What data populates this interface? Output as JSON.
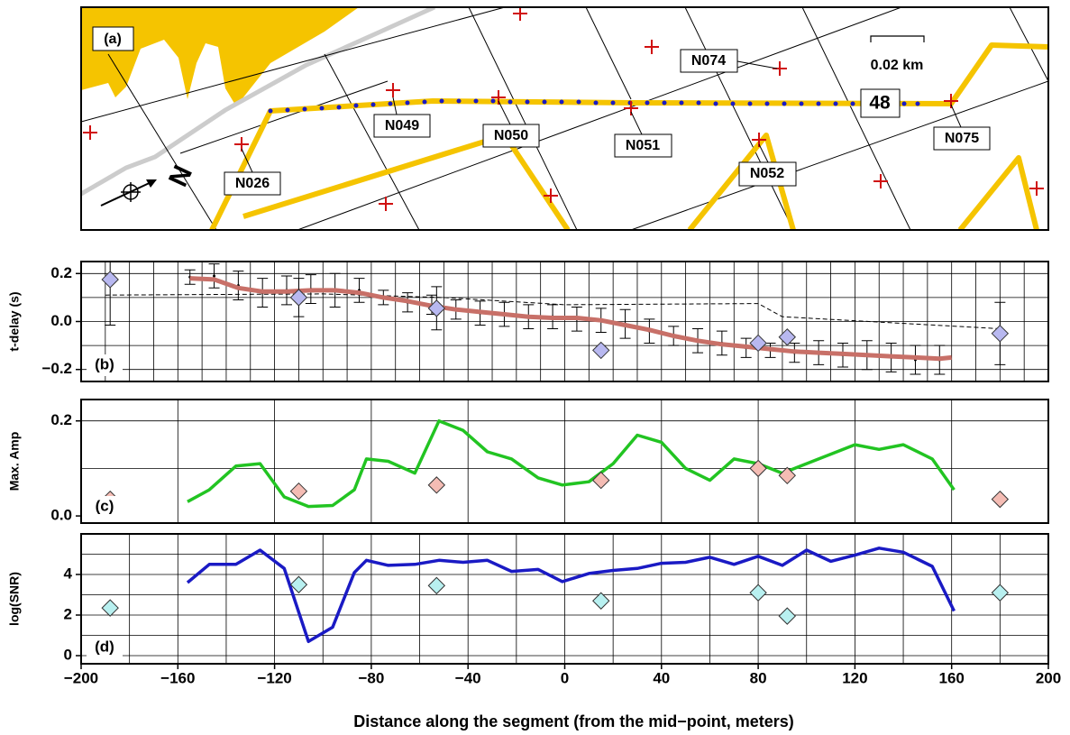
{
  "map": {
    "panel_label": "(a)",
    "stations": [
      "N074",
      "N049",
      "N050",
      "N051",
      "N052",
      "N075",
      "N026"
    ],
    "segment_id": "48",
    "scale": "0.02 km",
    "north": "N"
  },
  "chart_data": [
    {
      "type": "profile",
      "panel_label": "(b)",
      "ylabel": "t-delay (s)",
      "xlim": [
        -200,
        200
      ],
      "ylim": [
        -0.25,
        0.25
      ],
      "yticks": [
        {
          "value": -0.2,
          "label": "−0.2"
        },
        {
          "value": 0,
          "label": "0.0"
        },
        0.2
      ],
      "xgrid": [
        -190,
        -180,
        -170,
        -160,
        -150,
        -140,
        -130,
        -120,
        -110,
        -100,
        -90,
        -80,
        -70,
        -60,
        -50,
        -40,
        -30,
        -20,
        -10,
        0,
        10,
        20,
        30,
        40,
        50,
        60,
        70,
        80,
        90,
        100,
        110,
        120,
        130,
        140,
        150,
        160,
        170,
        180,
        190
      ],
      "ygrid": [
        -0.2,
        -0.1,
        0,
        0.1,
        0.2
      ],
      "series": [
        {
          "style": "dashed",
          "color": "#000000",
          "x": [
            -190,
            -100,
            -50,
            0,
            80,
            90,
            180
          ],
          "values": [
            0.11,
            0.115,
            0.1,
            0.07,
            0.075,
            0.02,
            -0.03
          ]
        },
        {
          "style": "errorbar",
          "color": "#000000",
          "x": [
            -155,
            -145,
            -135,
            -125,
            -115,
            -105,
            -95,
            -85,
            -75,
            -65,
            -55,
            -45,
            -35,
            -25,
            -15,
            -5,
            5,
            15,
            25,
            35,
            45,
            55,
            65,
            75,
            85,
            95,
            105,
            115,
            125,
            135,
            145,
            155
          ],
          "values": [
            0.185,
            0.19,
            0.15,
            0.12,
            0.13,
            0.135,
            0.13,
            0.13,
            0.1,
            0.08,
            0.07,
            0.05,
            0.035,
            0.03,
            0.02,
            0.02,
            0.01,
            0.005,
            -0.01,
            -0.04,
            -0.06,
            -0.08,
            -0.09,
            -0.11,
            -0.12,
            -0.13,
            -0.13,
            -0.14,
            -0.14,
            -0.15,
            -0.16,
            -0.16
          ],
          "errors": [
            0.03,
            0.05,
            0.06,
            0.06,
            0.06,
            0.06,
            0.07,
            0.05,
            0.03,
            0.04,
            0.04,
            0.04,
            0.05,
            0.05,
            0.05,
            0.05,
            0.05,
            0.05,
            0.06,
            0.05,
            0.04,
            0.05,
            0.05,
            0.04,
            0.03,
            0.04,
            0.05,
            0.05,
            0.06,
            0.06,
            0.06,
            0.06
          ]
        },
        {
          "style": "line",
          "color": "#c87068",
          "width": 5,
          "x": [
            -155,
            -145,
            -135,
            -125,
            -115,
            -105,
            -95,
            -85,
            -75,
            -65,
            -55,
            -45,
            -35,
            -25,
            -15,
            -5,
            5,
            15,
            25,
            35,
            45,
            55,
            65,
            75,
            85,
            95,
            105,
            115,
            125,
            135,
            145,
            155,
            160
          ],
          "values": [
            0.18,
            0.175,
            0.14,
            0.125,
            0.125,
            0.13,
            0.13,
            0.12,
            0.1,
            0.085,
            0.065,
            0.05,
            0.04,
            0.03,
            0.02,
            0.015,
            0.015,
            0.005,
            -0.015,
            -0.035,
            -0.06,
            -0.08,
            -0.095,
            -0.105,
            -0.115,
            -0.125,
            -0.13,
            -0.135,
            -0.14,
            -0.145,
            -0.15,
            -0.155,
            -0.15
          ]
        },
        {
          "style": "diamond",
          "color": "#b8b8f0",
          "x": [
            -188,
            -110,
            -53,
            15,
            80,
            92,
            180
          ],
          "values": [
            0.175,
            0.1,
            0.055,
            -0.12,
            -0.09,
            -0.065,
            -0.05
          ],
          "errors": [
            0.19,
            0.08,
            0.09,
            null,
            null,
            null,
            0.13
          ]
        }
      ]
    },
    {
      "type": "profile",
      "panel_label": "(c)",
      "ylabel": "Max. Amp",
      "xlim": [
        -200,
        200
      ],
      "ylim": [
        -0.015,
        0.245
      ],
      "yticks": [
        {
          "value": 0,
          "label": "0.0"
        },
        0.2
      ],
      "xgrid": [
        -160,
        -120,
        -80,
        -40,
        0,
        40,
        80,
        120,
        160
      ],
      "ygrid": [
        0.1,
        0.2
      ],
      "series": [
        {
          "style": "line",
          "color": "#22c422",
          "width": 3.5,
          "x": [
            -156,
            -147,
            -136,
            -126,
            -116,
            -106,
            -96,
            -87,
            -82,
            -73,
            -62,
            -52,
            -42,
            -32,
            -22,
            -11,
            -1,
            10,
            20,
            30,
            40,
            50,
            60,
            70,
            80,
            90,
            100,
            110,
            120,
            130,
            140,
            152,
            161
          ],
          "values": [
            0.03,
            0.055,
            0.105,
            0.11,
            0.04,
            0.02,
            0.022,
            0.055,
            0.12,
            0.115,
            0.09,
            0.2,
            0.18,
            0.135,
            0.12,
            0.08,
            0.065,
            0.072,
            0.11,
            0.17,
            0.155,
            0.1,
            0.075,
            0.12,
            0.11,
            0.09,
            0.11,
            0.13,
            0.15,
            0.14,
            0.15,
            0.12,
            0.055
          ]
        },
        {
          "style": "diamond",
          "color": "#f4bcb4",
          "x": [
            -188,
            -110,
            -53,
            15,
            80,
            92,
            180
          ],
          "values": [
            0.035,
            0.052,
            0.065,
            0.075,
            0.1,
            0.085,
            0.035
          ]
        }
      ]
    },
    {
      "type": "profile",
      "panel_label": "(d)",
      "ylabel": "log(SNR)",
      "xlabel": "Distance along the segment (from the mid−point, meters)",
      "xlim": [
        -200,
        200
      ],
      "ylim": [
        -0.4,
        6
      ],
      "xticks": [
        {
          "value": -200,
          "label": "−200"
        },
        {
          "value": -160,
          "label": "−160"
        },
        {
          "value": -120,
          "label": "−120"
        },
        {
          "value": -80,
          "label": "−80"
        },
        {
          "value": -40,
          "label": "−40"
        },
        0,
        40,
        80,
        120,
        160,
        200
      ],
      "yticks": [
        0,
        2,
        4
      ],
      "xgrid": [
        -180,
        -160,
        -140,
        -120,
        -100,
        -80,
        -60,
        -40,
        -20,
        0,
        20,
        40,
        60,
        80,
        100,
        120,
        140,
        160,
        180
      ],
      "ygrid": [
        0,
        1,
        2,
        3,
        4,
        5
      ],
      "series": [
        {
          "style": "line",
          "color": "#1a1ac4",
          "width": 3.5,
          "x": [
            -156,
            -147,
            -136,
            -126,
            -116,
            -106,
            -96,
            -87,
            -82,
            -73,
            -62,
            -52,
            -42,
            -32,
            -22,
            -11,
            -1,
            10,
            20,
            30,
            40,
            50,
            60,
            70,
            80,
            90,
            100,
            110,
            120,
            130,
            140,
            152,
            161
          ],
          "values": [
            3.6,
            4.5,
            4.5,
            5.2,
            4.3,
            0.7,
            1.4,
            4.1,
            4.7,
            4.45,
            4.5,
            4.7,
            4.6,
            4.7,
            4.15,
            4.25,
            3.65,
            4.05,
            4.2,
            4.3,
            4.55,
            4.6,
            4.85,
            4.5,
            4.9,
            4.45,
            5.2,
            4.65,
            4.95,
            5.3,
            5.1,
            4.4,
            2.2
          ]
        },
        {
          "style": "diamond",
          "color": "#b8f0f0",
          "x": [
            -188,
            -110,
            -53,
            15,
            80,
            92,
            180
          ],
          "values": [
            2.35,
            3.5,
            3.45,
            2.7,
            3.1,
            1.95,
            3.1
          ]
        }
      ]
    }
  ]
}
